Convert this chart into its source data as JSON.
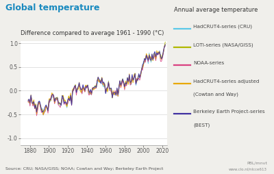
{
  "title": "Global temperature",
  "subtitle": "Difference compared to average 1961 - 1990 (°C)",
  "source_text": "Source: CRU; NASA/GISS; NOAA; Cowtan and Way; Berkeley Earth Project",
  "logo_line1": "PBL/mnvt",
  "logo_line2": "www.clo.nl/nlcce613",
  "legend_title": "Annual average temperature",
  "legend_entries": [
    {
      "label": "HadCRUT4-series (CRU)",
      "color": "#5bc8e8"
    },
    {
      "label": "LOTI-series (NASA/GISS)",
      "color": "#b0b800"
    },
    {
      "label": "NOAA-series",
      "color": "#d94080"
    },
    {
      "label": "HadCRUT4-series adjusted\n(Cowtan and Way)",
      "color": "#e8a800"
    },
    {
      "label": "Berkeley Earth Project-series\n(BEST)",
      "color": "#4030a0"
    }
  ],
  "title_color": "#1a8abf",
  "title_fontsize": 9,
  "subtitle_fontsize": 6,
  "yticks": [
    -1.0,
    -0.5,
    0.0,
    0.5,
    1.0
  ],
  "xticks": [
    1880,
    1900,
    1920,
    1940,
    1960,
    1980,
    2000,
    2020
  ],
  "xlim": [
    1870,
    2025
  ],
  "ylim": [
    -1.15,
    1.05
  ],
  "background_color": "#f0efeb",
  "plot_bg_color": "#ffffff",
  "grid_color": "#cccccc",
  "seed": 42
}
